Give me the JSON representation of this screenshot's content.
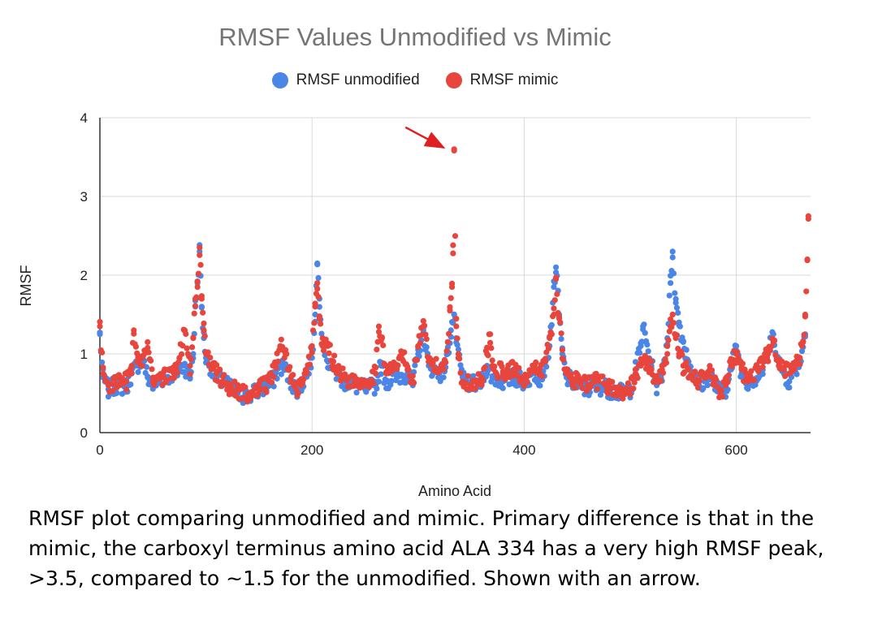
{
  "chart_data": {
    "type": "scatter",
    "title": "RMSF Values Unmodified vs Mimic",
    "xlabel": "Amino Acid",
    "ylabel": "RMSF",
    "xlim": [
      0,
      670
    ],
    "ylim": [
      0,
      4
    ],
    "xticks": [
      "0",
      "200",
      "400",
      "600"
    ],
    "yticks": [
      "0",
      "1",
      "2",
      "3",
      "4"
    ],
    "grid": true,
    "legend_position": "top",
    "series": [
      {
        "name": "RMSF unmodified",
        "color": "#4A86E8",
        "profile": [
          [
            0,
            1.25
          ],
          [
            3,
            0.7
          ],
          [
            8,
            0.55
          ],
          [
            15,
            0.6
          ],
          [
            25,
            0.58
          ],
          [
            30,
            0.75
          ],
          [
            35,
            0.85
          ],
          [
            40,
            0.95
          ],
          [
            45,
            0.7
          ],
          [
            50,
            0.6
          ],
          [
            60,
            0.7
          ],
          [
            70,
            0.75
          ],
          [
            80,
            0.85
          ],
          [
            85,
            0.7
          ],
          [
            88,
            1.0
          ],
          [
            90,
            1.6
          ],
          [
            92,
            1.9
          ],
          [
            94,
            2.3
          ],
          [
            96,
            1.6
          ],
          [
            98,
            1.2
          ],
          [
            100,
            0.95
          ],
          [
            110,
            0.7
          ],
          [
            120,
            0.6
          ],
          [
            130,
            0.5
          ],
          [
            140,
            0.45
          ],
          [
            150,
            0.55
          ],
          [
            160,
            0.6
          ],
          [
            165,
            0.7
          ],
          [
            170,
            0.85
          ],
          [
            175,
            0.8
          ],
          [
            180,
            0.65
          ],
          [
            185,
            0.55
          ],
          [
            190,
            0.6
          ],
          [
            195,
            0.75
          ],
          [
            200,
            0.95
          ],
          [
            203,
            1.5
          ],
          [
            205,
            2.15
          ],
          [
            207,
            1.7
          ],
          [
            210,
            1.2
          ],
          [
            215,
            0.9
          ],
          [
            220,
            0.8
          ],
          [
            230,
            0.65
          ],
          [
            240,
            0.6
          ],
          [
            250,
            0.55
          ],
          [
            260,
            0.6
          ],
          [
            265,
            0.85
          ],
          [
            270,
            0.65
          ],
          [
            280,
            0.7
          ],
          [
            290,
            0.75
          ],
          [
            295,
            0.6
          ],
          [
            300,
            1.0
          ],
          [
            305,
            1.3
          ],
          [
            310,
            0.85
          ],
          [
            320,
            0.75
          ],
          [
            325,
            0.8
          ],
          [
            328,
            1.0
          ],
          [
            331,
            1.3
          ],
          [
            334,
            1.5
          ],
          [
            336,
            1.2
          ],
          [
            338,
            0.95
          ],
          [
            342,
            0.7
          ],
          [
            350,
            0.6
          ],
          [
            360,
            0.65
          ],
          [
            365,
            0.85
          ],
          [
            370,
            0.7
          ],
          [
            380,
            0.65
          ],
          [
            390,
            0.7
          ],
          [
            400,
            0.65
          ],
          [
            410,
            0.75
          ],
          [
            415,
            0.7
          ],
          [
            420,
            0.85
          ],
          [
            424,
            1.1
          ],
          [
            428,
            1.85
          ],
          [
            430,
            2.1
          ],
          [
            433,
            1.5
          ],
          [
            436,
            1.0
          ],
          [
            440,
            0.7
          ],
          [
            450,
            0.6
          ],
          [
            460,
            0.55
          ],
          [
            470,
            0.6
          ],
          [
            480,
            0.55
          ],
          [
            490,
            0.5
          ],
          [
            500,
            0.55
          ],
          [
            505,
            0.8
          ],
          [
            510,
            1.1
          ],
          [
            512,
            1.35
          ],
          [
            515,
            1.15
          ],
          [
            520,
            0.85
          ],
          [
            525,
            0.6
          ],
          [
            530,
            0.75
          ],
          [
            535,
            1.2
          ],
          [
            538,
            1.9
          ],
          [
            540,
            2.3
          ],
          [
            543,
            1.65
          ],
          [
            546,
            1.4
          ],
          [
            550,
            1.15
          ],
          [
            555,
            0.9
          ],
          [
            560,
            0.75
          ],
          [
            565,
            0.6
          ],
          [
            570,
            0.65
          ],
          [
            575,
            0.75
          ],
          [
            580,
            0.6
          ],
          [
            585,
            0.5
          ],
          [
            590,
            0.55
          ],
          [
            595,
            0.8
          ],
          [
            600,
            1.1
          ],
          [
            605,
            0.75
          ],
          [
            610,
            0.65
          ],
          [
            620,
            0.7
          ],
          [
            625,
            0.8
          ],
          [
            630,
            1.05
          ],
          [
            635,
            1.25
          ],
          [
            640,
            0.9
          ],
          [
            645,
            0.75
          ],
          [
            650,
            0.65
          ],
          [
            655,
            0.8
          ],
          [
            660,
            0.9
          ],
          [
            665,
            1.25
          ]
        ]
      },
      {
        "name": "RMSF mimic",
        "color": "#E8453C",
        "profile": [
          [
            0,
            1.35
          ],
          [
            3,
            0.75
          ],
          [
            8,
            0.6
          ],
          [
            15,
            0.62
          ],
          [
            25,
            0.65
          ],
          [
            30,
            0.85
          ],
          [
            32,
            1.3
          ],
          [
            35,
            0.9
          ],
          [
            40,
            0.95
          ],
          [
            45,
            1.15
          ],
          [
            50,
            0.7
          ],
          [
            60,
            0.7
          ],
          [
            70,
            0.75
          ],
          [
            75,
            0.95
          ],
          [
            80,
            1.3
          ],
          [
            85,
            0.85
          ],
          [
            88,
            1.2
          ],
          [
            90,
            1.7
          ],
          [
            92,
            1.85
          ],
          [
            94,
            2.35
          ],
          [
            96,
            1.7
          ],
          [
            98,
            1.3
          ],
          [
            100,
            1.0
          ],
          [
            110,
            0.75
          ],
          [
            120,
            0.6
          ],
          [
            130,
            0.55
          ],
          [
            140,
            0.45
          ],
          [
            150,
            0.55
          ],
          [
            160,
            0.65
          ],
          [
            165,
            0.85
          ],
          [
            170,
            1.1
          ],
          [
            175,
            1.0
          ],
          [
            180,
            0.7
          ],
          [
            185,
            0.55
          ],
          [
            190,
            0.6
          ],
          [
            195,
            0.75
          ],
          [
            200,
            1.1
          ],
          [
            203,
            1.6
          ],
          [
            205,
            1.9
          ],
          [
            207,
            1.45
          ],
          [
            210,
            1.1
          ],
          [
            215,
            1.1
          ],
          [
            220,
            0.9
          ],
          [
            230,
            0.7
          ],
          [
            240,
            0.65
          ],
          [
            250,
            0.65
          ],
          [
            260,
            0.75
          ],
          [
            263,
            1.35
          ],
          [
            266,
            1.2
          ],
          [
            270,
            0.75
          ],
          [
            280,
            0.85
          ],
          [
            285,
            1.0
          ],
          [
            290,
            0.8
          ],
          [
            295,
            0.65
          ],
          [
            300,
            1.1
          ],
          [
            305,
            1.35
          ],
          [
            310,
            0.9
          ],
          [
            320,
            0.8
          ],
          [
            325,
            0.9
          ],
          [
            328,
            1.15
          ],
          [
            330,
            1.55
          ],
          [
            332,
            1.85
          ],
          [
            333,
            2.38
          ],
          [
            334,
            3.6
          ],
          [
            336,
            1.35
          ],
          [
            338,
            1.0
          ],
          [
            342,
            0.65
          ],
          [
            350,
            0.6
          ],
          [
            360,
            0.7
          ],
          [
            365,
            1.0
          ],
          [
            368,
            1.25
          ],
          [
            370,
            0.85
          ],
          [
            380,
            0.75
          ],
          [
            390,
            0.8
          ],
          [
            400,
            0.7
          ],
          [
            410,
            0.8
          ],
          [
            415,
            0.75
          ],
          [
            420,
            0.9
          ],
          [
            424,
            1.2
          ],
          [
            428,
            1.5
          ],
          [
            430,
            1.95
          ],
          [
            433,
            1.45
          ],
          [
            436,
            1.05
          ],
          [
            440,
            0.75
          ],
          [
            450,
            0.65
          ],
          [
            460,
            0.6
          ],
          [
            470,
            0.65
          ],
          [
            480,
            0.6
          ],
          [
            490,
            0.5
          ],
          [
            500,
            0.55
          ],
          [
            505,
            0.75
          ],
          [
            510,
            0.85
          ],
          [
            515,
            0.9
          ],
          [
            520,
            0.8
          ],
          [
            525,
            0.65
          ],
          [
            530,
            0.8
          ],
          [
            535,
            1.0
          ],
          [
            538,
            1.35
          ],
          [
            540,
            1.5
          ],
          [
            543,
            1.2
          ],
          [
            546,
            1.0
          ],
          [
            550,
            0.85
          ],
          [
            555,
            0.8
          ],
          [
            560,
            0.75
          ],
          [
            565,
            0.65
          ],
          [
            570,
            0.7
          ],
          [
            575,
            0.8
          ],
          [
            580,
            0.6
          ],
          [
            585,
            0.5
          ],
          [
            590,
            0.6
          ],
          [
            595,
            0.85
          ],
          [
            600,
            1.0
          ],
          [
            605,
            0.8
          ],
          [
            610,
            0.7
          ],
          [
            620,
            0.8
          ],
          [
            625,
            0.9
          ],
          [
            630,
            1.0
          ],
          [
            635,
            1.15
          ],
          [
            640,
            0.85
          ],
          [
            645,
            0.8
          ],
          [
            650,
            0.75
          ],
          [
            655,
            0.85
          ],
          [
            660,
            0.95
          ],
          [
            663,
            1.15
          ],
          [
            665,
            1.5
          ],
          [
            667,
            2.2
          ],
          [
            668,
            2.75
          ]
        ]
      }
    ],
    "annotation": {
      "type": "arrow",
      "color": "#E02020",
      "target": {
        "x": 334,
        "y": 3.6
      }
    }
  },
  "caption": "RMSF plot comparing unmodified and mimic. Primary difference is that in the mimic, the carboxyl terminus amino acid ALA 334 has a very high RMSF peak, >3.5, compared to ~1.5 for the unmodified. Shown with an arrow."
}
